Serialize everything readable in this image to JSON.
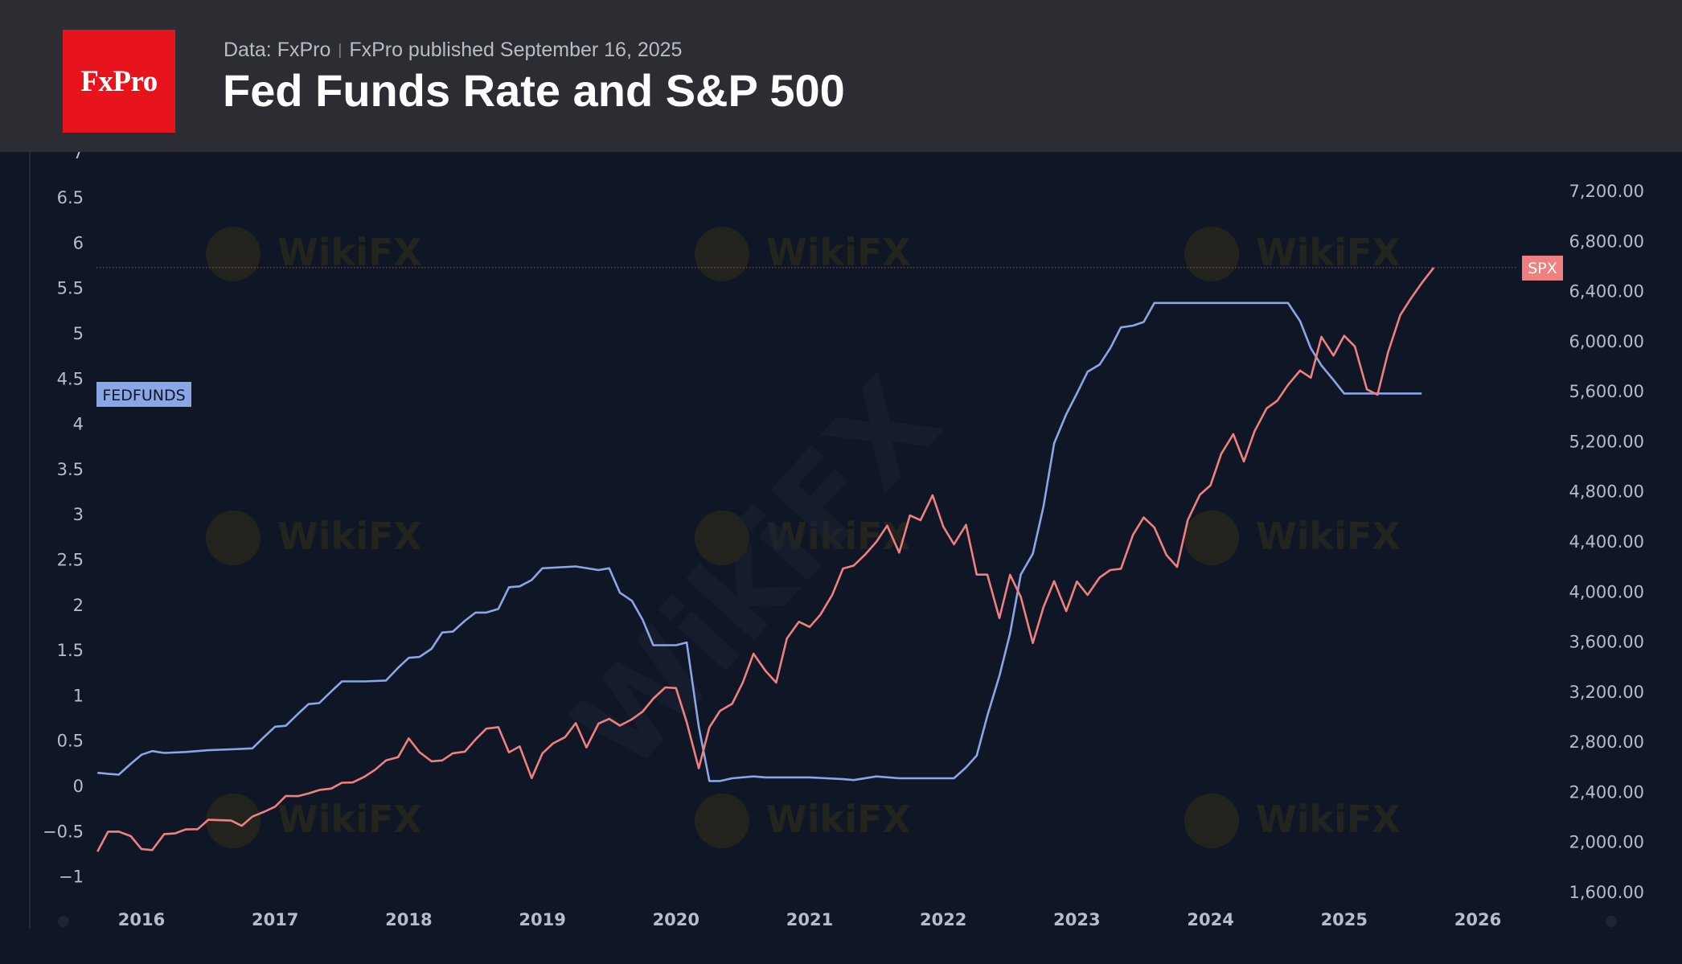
{
  "header": {
    "logo_text": "FxPro",
    "source_text": "Data: FxPro",
    "published_text": "FxPro published September 16, 2025",
    "title": "Fed Funds Rate and S&P 500"
  },
  "colors": {
    "background": "#0f1726",
    "header_bg": "#2b2d33",
    "logo_bg": "#e8141d",
    "fedfunds_line": "#8ba6e6",
    "spx_line": "#f08080",
    "label_fedfunds_bg": "#8ba6e6",
    "label_spx_bg": "#f08080"
  },
  "watermark": "WikiFX",
  "chart_data": {
    "type": "line",
    "title": "Fed Funds Rate and S&P 500",
    "x_ticks": [
      "2016",
      "2017",
      "2018",
      "2019",
      "2020",
      "2021",
      "2022",
      "2023",
      "2024",
      "2025",
      "2026"
    ],
    "x_range": [
      2015.65,
      2026.6
    ],
    "y_left": {
      "range": [
        -1.2,
        6.9
      ],
      "ticks": [
        6.5,
        6,
        5.5,
        5,
        4.5,
        4,
        3.5,
        3,
        2.5,
        2,
        1.5,
        1,
        0.5,
        0,
        -0.5,
        -1
      ],
      "tick_labels": [
        "6.5",
        "6",
        "5.5",
        "5",
        "4.5",
        "4",
        "3.5",
        "3",
        "2.5",
        "2",
        "1.5",
        "1",
        "0.5",
        "0",
        "−0.5",
        "−1"
      ]
    },
    "y_right": {
      "range": [
        1500,
        7300
      ],
      "ticks": [
        7200,
        6800,
        6400,
        6000,
        5600,
        5200,
        4800,
        4400,
        4000,
        3600,
        3200,
        2800,
        2400,
        2000,
        1600
      ],
      "tick_labels": [
        "7,200.00",
        "6,800.00",
        "6,400.00",
        "6,000.00",
        "5,600.00",
        "5,200.00",
        "4,800.00",
        "4,400.00",
        "4,000.00",
        "3,600.00",
        "3,200.00",
        "2,800.00",
        "2,400.00",
        "2,000.00",
        "1,600.00"
      ]
    },
    "series": [
      {
        "name": "FEDFUNDS",
        "axis": "left",
        "points": [
          [
            2015.67,
            0.14
          ],
          [
            2015.75,
            0.13
          ],
          [
            2015.83,
            0.12
          ],
          [
            2015.92,
            0.24
          ],
          [
            2016.0,
            0.34
          ],
          [
            2016.08,
            0.38
          ],
          [
            2016.17,
            0.36
          ],
          [
            2016.33,
            0.37
          ],
          [
            2016.5,
            0.39
          ],
          [
            2016.67,
            0.4
          ],
          [
            2016.83,
            0.41
          ],
          [
            2016.92,
            0.54
          ],
          [
            2017.0,
            0.65
          ],
          [
            2017.08,
            0.66
          ],
          [
            2017.17,
            0.79
          ],
          [
            2017.25,
            0.9
          ],
          [
            2017.33,
            0.91
          ],
          [
            2017.42,
            1.04
          ],
          [
            2017.5,
            1.15
          ],
          [
            2017.67,
            1.15
          ],
          [
            2017.83,
            1.16
          ],
          [
            2017.92,
            1.3
          ],
          [
            2018.0,
            1.41
          ],
          [
            2018.08,
            1.42
          ],
          [
            2018.17,
            1.51
          ],
          [
            2018.25,
            1.69
          ],
          [
            2018.33,
            1.7
          ],
          [
            2018.42,
            1.82
          ],
          [
            2018.5,
            1.91
          ],
          [
            2018.58,
            1.91
          ],
          [
            2018.67,
            1.95
          ],
          [
            2018.75,
            2.19
          ],
          [
            2018.83,
            2.2
          ],
          [
            2018.92,
            2.27
          ],
          [
            2019.0,
            2.4
          ],
          [
            2019.25,
            2.42
          ],
          [
            2019.42,
            2.38
          ],
          [
            2019.5,
            2.4
          ],
          [
            2019.58,
            2.13
          ],
          [
            2019.67,
            2.04
          ],
          [
            2019.75,
            1.83
          ],
          [
            2019.83,
            1.55
          ],
          [
            2020.0,
            1.55
          ],
          [
            2020.08,
            1.58
          ],
          [
            2020.17,
            0.65
          ],
          [
            2020.25,
            0.05
          ],
          [
            2020.33,
            0.05
          ],
          [
            2020.42,
            0.08
          ],
          [
            2020.58,
            0.1
          ],
          [
            2020.67,
            0.09
          ],
          [
            2021.0,
            0.09
          ],
          [
            2021.25,
            0.07
          ],
          [
            2021.33,
            0.06
          ],
          [
            2021.5,
            0.1
          ],
          [
            2021.67,
            0.08
          ],
          [
            2022.0,
            0.08
          ],
          [
            2022.08,
            0.08
          ],
          [
            2022.17,
            0.2
          ],
          [
            2022.25,
            0.33
          ],
          [
            2022.33,
            0.77
          ],
          [
            2022.42,
            1.21
          ],
          [
            2022.5,
            1.68
          ],
          [
            2022.58,
            2.33
          ],
          [
            2022.67,
            2.56
          ],
          [
            2022.75,
            3.08
          ],
          [
            2022.83,
            3.78
          ],
          [
            2022.92,
            4.1
          ],
          [
            2023.0,
            4.33
          ],
          [
            2023.08,
            4.57
          ],
          [
            2023.17,
            4.65
          ],
          [
            2023.25,
            4.83
          ],
          [
            2023.33,
            5.06
          ],
          [
            2023.42,
            5.08
          ],
          [
            2023.5,
            5.12
          ],
          [
            2023.58,
            5.33
          ],
          [
            2024.58,
            5.33
          ],
          [
            2024.67,
            5.13
          ],
          [
            2024.75,
            4.83
          ],
          [
            2024.83,
            4.64
          ],
          [
            2024.92,
            4.48
          ],
          [
            2025.0,
            4.33
          ],
          [
            2025.58,
            4.33
          ]
        ]
      },
      {
        "name": "SPX",
        "axis": "right",
        "points": [
          [
            2015.67,
            1920
          ],
          [
            2015.75,
            2079
          ],
          [
            2015.83,
            2080
          ],
          [
            2015.92,
            2043
          ],
          [
            2016.0,
            1940
          ],
          [
            2016.08,
            1932
          ],
          [
            2016.17,
            2060
          ],
          [
            2016.25,
            2065
          ],
          [
            2016.33,
            2097
          ],
          [
            2016.42,
            2099
          ],
          [
            2016.5,
            2174
          ],
          [
            2016.58,
            2171
          ],
          [
            2016.67,
            2168
          ],
          [
            2016.75,
            2126
          ],
          [
            2016.83,
            2199
          ],
          [
            2016.92,
            2239
          ],
          [
            2017.0,
            2279
          ],
          [
            2017.08,
            2364
          ],
          [
            2017.17,
            2363
          ],
          [
            2017.25,
            2384
          ],
          [
            2017.33,
            2412
          ],
          [
            2017.42,
            2423
          ],
          [
            2017.5,
            2470
          ],
          [
            2017.58,
            2472
          ],
          [
            2017.67,
            2519
          ],
          [
            2017.75,
            2575
          ],
          [
            2017.83,
            2648
          ],
          [
            2017.92,
            2674
          ],
          [
            2018.0,
            2824
          ],
          [
            2018.08,
            2714
          ],
          [
            2018.17,
            2641
          ],
          [
            2018.25,
            2648
          ],
          [
            2018.33,
            2705
          ],
          [
            2018.42,
            2718
          ],
          [
            2018.5,
            2816
          ],
          [
            2018.58,
            2902
          ],
          [
            2018.67,
            2914
          ],
          [
            2018.75,
            2712
          ],
          [
            2018.83,
            2760
          ],
          [
            2018.92,
            2507
          ],
          [
            2019.0,
            2704
          ],
          [
            2019.08,
            2784
          ],
          [
            2019.17,
            2834
          ],
          [
            2019.25,
            2946
          ],
          [
            2019.33,
            2752
          ],
          [
            2019.42,
            2942
          ],
          [
            2019.5,
            2980
          ],
          [
            2019.58,
            2926
          ],
          [
            2019.67,
            2977
          ],
          [
            2019.75,
            3038
          ],
          [
            2019.83,
            3141
          ],
          [
            2019.92,
            3231
          ],
          [
            2020.0,
            3226
          ],
          [
            2020.08,
            2954
          ],
          [
            2020.17,
            2585
          ],
          [
            2020.25,
            2912
          ],
          [
            2020.33,
            3044
          ],
          [
            2020.42,
            3100
          ],
          [
            2020.5,
            3271
          ],
          [
            2020.58,
            3500
          ],
          [
            2020.67,
            3363
          ],
          [
            2020.75,
            3270
          ],
          [
            2020.83,
            3622
          ],
          [
            2020.92,
            3756
          ],
          [
            2021.0,
            3714
          ],
          [
            2021.08,
            3811
          ],
          [
            2021.17,
            3973
          ],
          [
            2021.25,
            4181
          ],
          [
            2021.33,
            4204
          ],
          [
            2021.42,
            4298
          ],
          [
            2021.5,
            4395
          ],
          [
            2021.58,
            4523
          ],
          [
            2021.67,
            4308
          ],
          [
            2021.75,
            4605
          ],
          [
            2021.83,
            4567
          ],
          [
            2021.92,
            4766
          ],
          [
            2022.0,
            4516
          ],
          [
            2022.08,
            4374
          ],
          [
            2022.17,
            4530
          ],
          [
            2022.25,
            4132
          ],
          [
            2022.33,
            4132
          ],
          [
            2022.42,
            3785
          ],
          [
            2022.5,
            4130
          ],
          [
            2022.58,
            3955
          ],
          [
            2022.67,
            3586
          ],
          [
            2022.75,
            3872
          ],
          [
            2022.83,
            4080
          ],
          [
            2022.92,
            3840
          ],
          [
            2023.0,
            4077
          ],
          [
            2023.08,
            3970
          ],
          [
            2023.17,
            4109
          ],
          [
            2023.25,
            4169
          ],
          [
            2023.33,
            4179
          ],
          [
            2023.42,
            4450
          ],
          [
            2023.5,
            4589
          ],
          [
            2023.58,
            4508
          ],
          [
            2023.67,
            4288
          ],
          [
            2023.75,
            4194
          ],
          [
            2023.83,
            4568
          ],
          [
            2023.92,
            4770
          ],
          [
            2024.0,
            4846
          ],
          [
            2024.08,
            5096
          ],
          [
            2024.17,
            5254
          ],
          [
            2024.25,
            5036
          ],
          [
            2024.33,
            5278
          ],
          [
            2024.42,
            5460
          ],
          [
            2024.5,
            5522
          ],
          [
            2024.58,
            5648
          ],
          [
            2024.67,
            5762
          ],
          [
            2024.75,
            5705
          ],
          [
            2024.83,
            6032
          ],
          [
            2024.92,
            5882
          ],
          [
            2025.0,
            6040
          ],
          [
            2025.08,
            5955
          ],
          [
            2025.17,
            5612
          ],
          [
            2025.25,
            5569
          ],
          [
            2025.33,
            5912
          ],
          [
            2025.42,
            6205
          ],
          [
            2025.5,
            6339
          ],
          [
            2025.58,
            6460
          ],
          [
            2025.67,
            6584
          ]
        ]
      }
    ],
    "current_value_line": {
      "series": "SPX",
      "value": 6584
    },
    "axis_labels": {
      "left_series_tag": "FEDFUNDS",
      "right_series_tag": "SPX"
    },
    "grid": false,
    "legend": "none"
  }
}
